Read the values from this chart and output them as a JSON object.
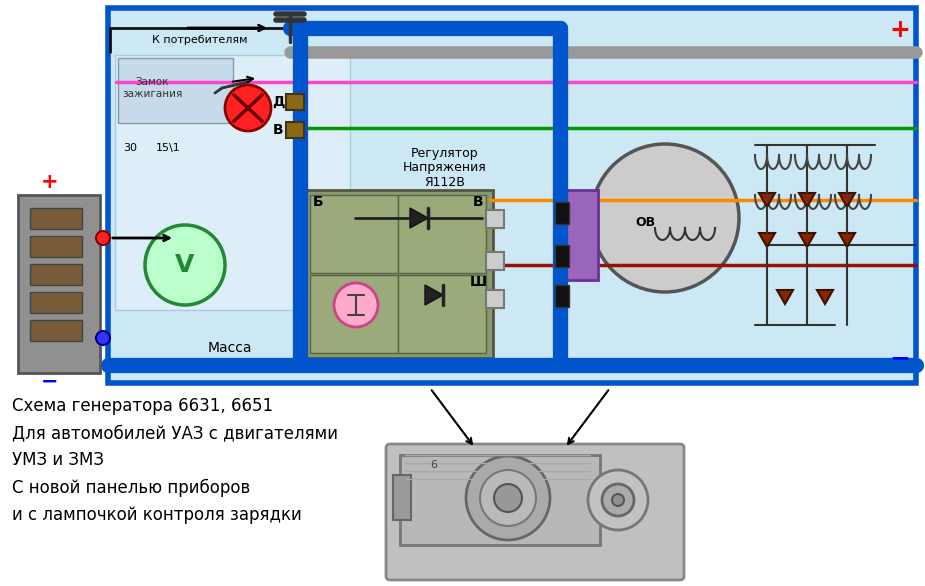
{
  "bg_color": "#ffffff",
  "diagram_bg": "#cce8f4",
  "border_blue": "#0055cc",
  "consumers_text": "К потребителям",
  "ignition_text": "Замок\nзажигания",
  "regulator_text": "Регулятор\nНапряжения\nЯ112В",
  "massa_text": "Масса",
  "caption_line1": "Схема генератора 6631, 6651",
  "caption_line2": "Для автомобилей УАЗ с двигателями",
  "caption_line3": "УМЗ и ЗМЗ",
  "caption_line4": "С новой панелью приборов",
  "caption_line5": "и с лампочкой контроля зарядки",
  "label_D": "Д",
  "label_V": "В",
  "label_B": "Б",
  "label_Sh": "Ш",
  "label_OV": "ОВ",
  "label_30": "30",
  "label_151": "15\\1",
  "label_massa": "Масса"
}
